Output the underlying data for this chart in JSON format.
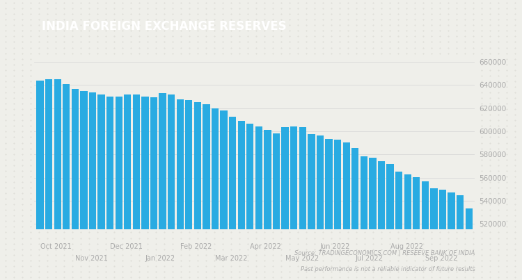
{
  "title": "INDIA FOREIGN EXCHANGE RESERVES",
  "title_bg_color": "#9B7B5B",
  "title_text_color": "#FFFFFF",
  "bar_color": "#29ABE2",
  "background_color": "#EFEFEA",
  "plot_bg_color": "#EFEFEA",
  "grid_color": "#D8D8D8",
  "tick_color": "#AAAAAA",
  "xlabel_color": "#AAAAAA",
  "source_text": "Source: TRADINGECONOMICS.COM | RESEEVE BANK OF INDIA",
  "disclaimer_text": "Past performance is not a reliable indicator of future results",
  "ylim": [
    515000,
    665000
  ],
  "yticks": [
    520000,
    540000,
    560000,
    580000,
    600000,
    620000,
    640000,
    660000
  ],
  "values": [
    643960,
    645020,
    644870,
    641008,
    636820,
    634964,
    633604,
    631531,
    630189,
    629755,
    631528,
    631528,
    630211,
    629437,
    632736,
    631498,
    627773,
    626830,
    625169,
    623318,
    619730,
    617648,
    612730,
    609020,
    606475,
    604006,
    601218,
    598395,
    603584,
    604010,
    603680,
    597728,
    596458,
    593282,
    592879,
    590584,
    585324,
    578045,
    576998,
    573875,
    571560,
    565284,
    562803,
    560530,
    556990,
    550871,
    549401,
    547255,
    544720,
    533106
  ],
  "x_labels_top": [
    "Oct 2021",
    "Dec 2021",
    "Feb 2022",
    "Apr 2022",
    "Jun 2022",
    "Aug 2022"
  ],
  "x_labels_bottom": [
    "Nov 2021",
    "Jan 2022",
    "Mar 2022",
    "May 2022",
    "Jul 2022",
    "Sep 2022"
  ],
  "x_labels_top_pos": [
    0,
    8,
    16,
    24,
    32,
    40
  ],
  "x_labels_bottom_pos": [
    4,
    12,
    20,
    28,
    36,
    44
  ]
}
